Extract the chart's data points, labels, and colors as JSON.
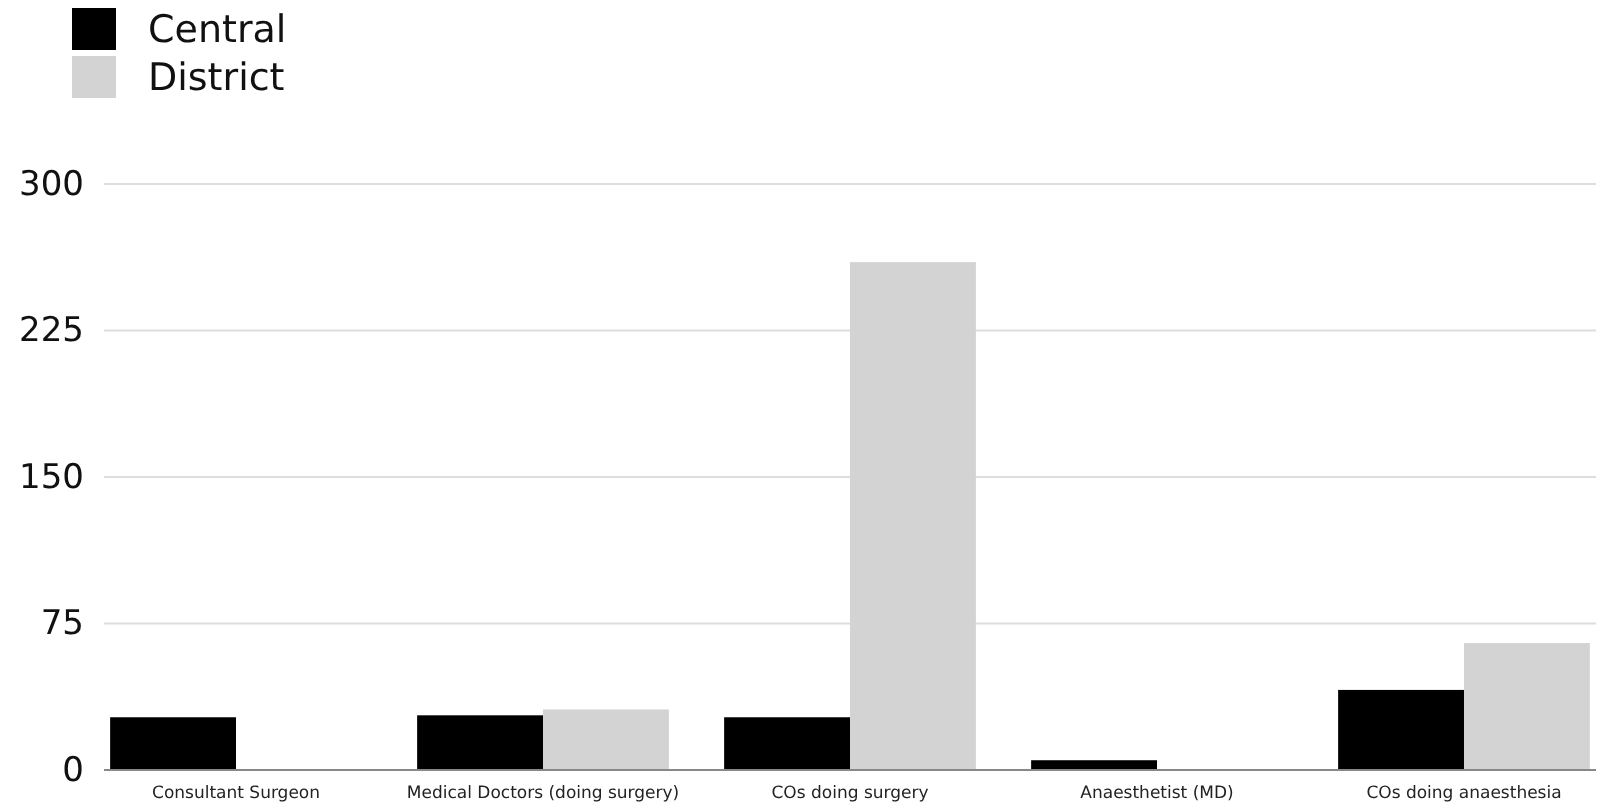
{
  "chart_data": {
    "type": "bar",
    "categories": [
      "Consultant Surgeon",
      "Medical Doctors (doing surgery)",
      "COs doing surgery",
      "Anaesthetist (MD)",
      "COs doing anaesthesia"
    ],
    "series": [
      {
        "name": "Central",
        "color": "#000000",
        "values": [
          27,
          28,
          27,
          5,
          41
        ]
      },
      {
        "name": "District",
        "color": "#d3d3d3",
        "values": [
          0,
          31,
          260,
          0,
          65
        ]
      }
    ],
    "ylim": [
      0,
      300
    ],
    "yticks": [
      0,
      75,
      150,
      225,
      300
    ],
    "grid": "y",
    "legend": "top left"
  }
}
